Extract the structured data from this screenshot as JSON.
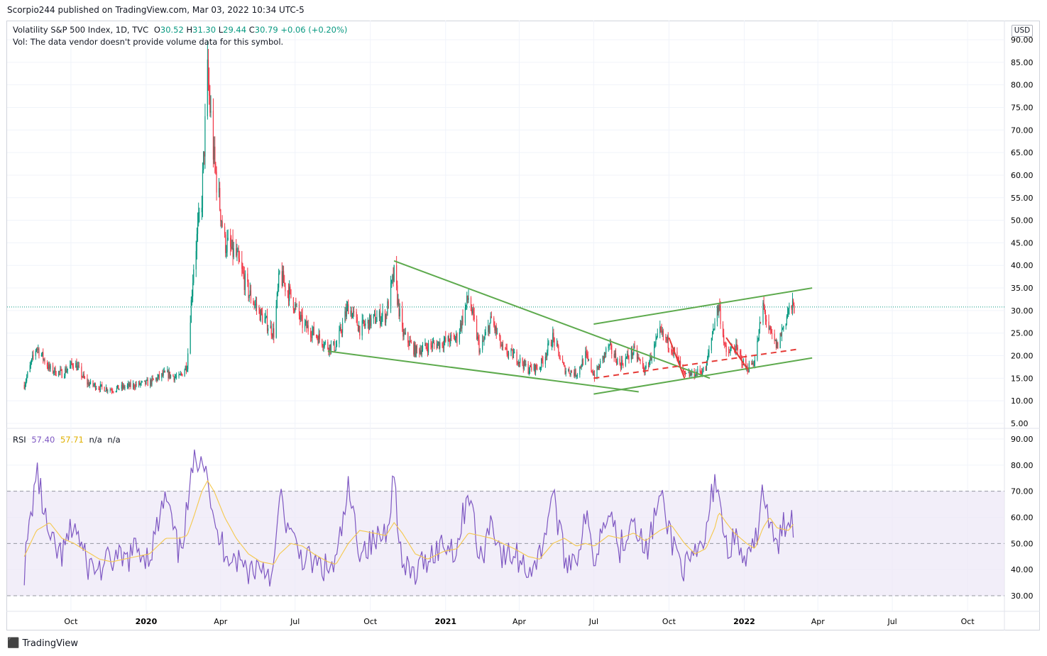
{
  "header": {
    "published": "Scorpio244 published on TradingView.com, Mar 03, 2022 10:34 UTC-5"
  },
  "legend": {
    "symbol": "Volatility S&P 500 Index, 1D, TVC",
    "o_label": "O",
    "o": "30.52",
    "h_label": "H",
    "h": "31.30",
    "l_label": "L",
    "l": "29.44",
    "c_label": "C",
    "c": "30.79",
    "change": "+0.06 (+0.20%)",
    "vol_note": "Vol: The data vendor doesn't provide volume data for this symbol."
  },
  "rsi_legend": {
    "name": "RSI",
    "value": "57.40",
    "ma": "57.71",
    "na1": "n/a",
    "na2": "n/a"
  },
  "currency": "USD",
  "brand": "TradingView",
  "colors": {
    "up": "#089981",
    "down": "#f23645",
    "rsi": "#7e57c2",
    "rsi_ma": "#f5c84c",
    "trend_green": "#5daa4d",
    "trend_red": "#e53935",
    "band": "#ede7f6"
  },
  "chart_data": [
    {
      "type": "candlestick",
      "title": "Volatility S&P 500 Index, 1D, TVC",
      "ylim": [
        5,
        90
      ],
      "y_ticks": [
        "90.00",
        "85.00",
        "80.00",
        "75.00",
        "70.00",
        "65.00",
        "60.00",
        "55.00",
        "50.00",
        "45.00",
        "40.00",
        "35.00",
        "30.00",
        "25.00",
        "20.00",
        "15.00",
        "10.00",
        "5.00"
      ],
      "x_ticks": [
        "Oct",
        "2020",
        "Apr",
        "Jul",
        "Oct",
        "2021",
        "Apr",
        "Jul",
        "Oct",
        "2022",
        "Apr",
        "Jul",
        "Oct"
      ],
      "last_close": 30.79,
      "series_close_points": [
        [
          "2019-08-05",
          13.5
        ],
        [
          "2019-08-20",
          22
        ],
        [
          "2019-09-05",
          17
        ],
        [
          "2019-09-20",
          16
        ],
        [
          "2019-10-05",
          18.5
        ],
        [
          "2019-10-20",
          14
        ],
        [
          "2019-11-05",
          13
        ],
        [
          "2019-11-20",
          12.5
        ],
        [
          "2019-12-05",
          13
        ],
        [
          "2019-12-20",
          13.5
        ],
        [
          "2020-01-05",
          14
        ],
        [
          "2020-01-25",
          16
        ],
        [
          "2020-02-10",
          15
        ],
        [
          "2020-02-20",
          18
        ],
        [
          "2020-02-28",
          40
        ],
        [
          "2020-03-09",
          55
        ],
        [
          "2020-03-16",
          82
        ],
        [
          "2020-03-24",
          63
        ],
        [
          "2020-04-06",
          45
        ],
        [
          "2020-04-20",
          42
        ],
        [
          "2020-05-05",
          34
        ],
        [
          "2020-05-20",
          29
        ],
        [
          "2020-06-05",
          25
        ],
        [
          "2020-06-12",
          38
        ],
        [
          "2020-06-26",
          33
        ],
        [
          "2020-07-10",
          27
        ],
        [
          "2020-07-24",
          25
        ],
        [
          "2020-08-10",
          22
        ],
        [
          "2020-08-20",
          22
        ],
        [
          "2020-09-04",
          31
        ],
        [
          "2020-09-18",
          26
        ],
        [
          "2020-10-05",
          28
        ],
        [
          "2020-10-20",
          29
        ],
        [
          "2020-10-30",
          38
        ],
        [
          "2020-11-09",
          25
        ],
        [
          "2020-11-25",
          21
        ],
        [
          "2020-12-10",
          22
        ],
        [
          "2020-12-30",
          23
        ],
        [
          "2021-01-15",
          24
        ],
        [
          "2021-01-29",
          33
        ],
        [
          "2021-02-12",
          21
        ],
        [
          "2021-02-26",
          28
        ],
        [
          "2021-03-12",
          21
        ],
        [
          "2021-03-26",
          20
        ],
        [
          "2021-04-12",
          17
        ],
        [
          "2021-04-26",
          17.5
        ],
        [
          "2021-05-12",
          24
        ],
        [
          "2021-05-26",
          17
        ],
        [
          "2021-06-10",
          16
        ],
        [
          "2021-06-21",
          20
        ],
        [
          "2021-07-02",
          15.5
        ],
        [
          "2021-07-19",
          22
        ],
        [
          "2021-08-02",
          18
        ],
        [
          "2021-08-19",
          21
        ],
        [
          "2021-09-02",
          16.5
        ],
        [
          "2021-09-20",
          25
        ],
        [
          "2021-10-04",
          22
        ],
        [
          "2021-10-20",
          15.5
        ],
        [
          "2021-11-02",
          16
        ],
        [
          "2021-11-15",
          17
        ],
        [
          "2021-11-26",
          28
        ],
        [
          "2021-12-01",
          31
        ],
        [
          "2021-12-10",
          20
        ],
        [
          "2021-12-20",
          22
        ],
        [
          "2022-01-04",
          17
        ],
        [
          "2022-01-14",
          19
        ],
        [
          "2022-01-24",
          31
        ],
        [
          "2022-02-01",
          25
        ],
        [
          "2022-02-10",
          22
        ],
        [
          "2022-02-24",
          30
        ],
        [
          "2022-03-03",
          30.79
        ]
      ]
    },
    {
      "type": "line",
      "title": "RSI",
      "ylim": [
        25,
        95
      ],
      "y_ticks": [
        "90.00",
        "80.00",
        "70.00",
        "60.00",
        "50.00",
        "40.00",
        "30.00"
      ],
      "bands": [
        70,
        50,
        30
      ],
      "series": [
        {
          "name": "RSI",
          "points": [
            [
              "2019-08-05",
              40
            ],
            [
              "2019-08-20",
              78
            ],
            [
              "2019-09-05",
              50
            ],
            [
              "2019-09-20",
              45
            ],
            [
              "2019-10-05",
              58
            ],
            [
              "2019-10-20",
              42
            ],
            [
              "2019-11-05",
              40
            ],
            [
              "2019-11-20",
              44
            ],
            [
              "2019-12-05",
              43
            ],
            [
              "2019-12-20",
              48
            ],
            [
              "2020-01-05",
              45
            ],
            [
              "2020-01-25",
              68
            ],
            [
              "2020-02-10",
              45
            ],
            [
              "2020-02-20",
              62
            ],
            [
              "2020-02-28",
              80
            ],
            [
              "2020-03-09",
              86
            ],
            [
              "2020-03-16",
              78
            ],
            [
              "2020-03-24",
              55
            ],
            [
              "2020-04-06",
              48
            ],
            [
              "2020-04-20",
              44
            ],
            [
              "2020-05-05",
              40
            ],
            [
              "2020-05-20",
              42
            ],
            [
              "2020-06-05",
              38
            ],
            [
              "2020-06-12",
              68
            ],
            [
              "2020-06-26",
              52
            ],
            [
              "2020-07-10",
              45
            ],
            [
              "2020-07-24",
              42
            ],
            [
              "2020-08-10",
              40
            ],
            [
              "2020-08-20",
              42
            ],
            [
              "2020-09-04",
              70
            ],
            [
              "2020-09-18",
              48
            ],
            [
              "2020-10-05",
              50
            ],
            [
              "2020-10-20",
              55
            ],
            [
              "2020-10-30",
              76
            ],
            [
              "2020-11-09",
              40
            ],
            [
              "2020-11-25",
              38
            ],
            [
              "2020-12-10",
              45
            ],
            [
              "2020-12-30",
              50
            ],
            [
              "2021-01-15",
              48
            ],
            [
              "2021-01-29",
              72
            ],
            [
              "2021-02-12",
              42
            ],
            [
              "2021-02-26",
              60
            ],
            [
              "2021-03-12",
              44
            ],
            [
              "2021-03-26",
              46
            ],
            [
              "2021-04-12",
              40
            ],
            [
              "2021-04-26",
              45
            ],
            [
              "2021-05-12",
              70
            ],
            [
              "2021-05-26",
              44
            ],
            [
              "2021-06-10",
              45
            ],
            [
              "2021-06-21",
              60
            ],
            [
              "2021-07-02",
              44
            ],
            [
              "2021-07-19",
              66
            ],
            [
              "2021-08-02",
              48
            ],
            [
              "2021-08-19",
              62
            ],
            [
              "2021-09-02",
              45
            ],
            [
              "2021-09-20",
              68
            ],
            [
              "2021-10-04",
              52
            ],
            [
              "2021-10-20",
              40
            ],
            [
              "2021-11-02",
              44
            ],
            [
              "2021-11-15",
              52
            ],
            [
              "2021-11-26",
              76
            ],
            [
              "2021-12-01",
              70
            ],
            [
              "2021-12-10",
              48
            ],
            [
              "2021-12-20",
              52
            ],
            [
              "2022-01-04",
              42
            ],
            [
              "2022-01-14",
              48
            ],
            [
              "2022-01-24",
              72
            ],
            [
              "2022-02-01",
              56
            ],
            [
              "2022-02-10",
              48
            ],
            [
              "2022-02-24",
              62
            ],
            [
              "2022-03-03",
              57.4
            ]
          ]
        },
        {
          "name": "MA",
          "points": [
            [
              "2019-08-05",
              45
            ],
            [
              "2019-08-20",
              55
            ],
            [
              "2019-09-05",
              58
            ],
            [
              "2019-09-20",
              52
            ],
            [
              "2019-10-05",
              50
            ],
            [
              "2019-10-20",
              47
            ],
            [
              "2019-11-05",
              44
            ],
            [
              "2019-11-20",
              43
            ],
            [
              "2019-12-05",
              44
            ],
            [
              "2019-12-20",
              45
            ],
            [
              "2020-01-05",
              46
            ],
            [
              "2020-01-25",
              52
            ],
            [
              "2020-02-10",
              52
            ],
            [
              "2020-02-20",
              53
            ],
            [
              "2020-02-28",
              60
            ],
            [
              "2020-03-09",
              70
            ],
            [
              "2020-03-16",
              74
            ],
            [
              "2020-03-24",
              70
            ],
            [
              "2020-04-06",
              60
            ],
            [
              "2020-04-20",
              52
            ],
            [
              "2020-05-05",
              46
            ],
            [
              "2020-05-20",
              43
            ],
            [
              "2020-06-05",
              42
            ],
            [
              "2020-06-12",
              46
            ],
            [
              "2020-06-26",
              50
            ],
            [
              "2020-07-10",
              49
            ],
            [
              "2020-07-24",
              46
            ],
            [
              "2020-08-10",
              43
            ],
            [
              "2020-08-20",
              42
            ],
            [
              "2020-09-04",
              50
            ],
            [
              "2020-09-18",
              55
            ],
            [
              "2020-10-05",
              54
            ],
            [
              "2020-10-20",
              53
            ],
            [
              "2020-10-30",
              58
            ],
            [
              "2020-11-09",
              54
            ],
            [
              "2020-11-25",
              46
            ],
            [
              "2020-12-10",
              44
            ],
            [
              "2020-12-30",
              47
            ],
            [
              "2021-01-15",
              48
            ],
            [
              "2021-01-29",
              54
            ],
            [
              "2021-02-12",
              53
            ],
            [
              "2021-02-26",
              52
            ],
            [
              "2021-03-12",
              50
            ],
            [
              "2021-03-26",
              48
            ],
            [
              "2021-04-12",
              45
            ],
            [
              "2021-04-26",
              44
            ],
            [
              "2021-05-12",
              50
            ],
            [
              "2021-05-26",
              52
            ],
            [
              "2021-06-10",
              49
            ],
            [
              "2021-06-21",
              50
            ],
            [
              "2021-07-02",
              49
            ],
            [
              "2021-07-19",
              53
            ],
            [
              "2021-08-02",
              52
            ],
            [
              "2021-08-19",
              54
            ],
            [
              "2021-09-02",
              51
            ],
            [
              "2021-09-20",
              55
            ],
            [
              "2021-10-04",
              57
            ],
            [
              "2021-10-20",
              50
            ],
            [
              "2021-11-02",
              46
            ],
            [
              "2021-11-15",
              48
            ],
            [
              "2021-11-26",
              56
            ],
            [
              "2021-12-01",
              62
            ],
            [
              "2021-12-10",
              58
            ],
            [
              "2021-12-20",
              54
            ],
            [
              "2022-01-04",
              50
            ],
            [
              "2022-01-14",
              48
            ],
            [
              "2022-01-24",
              56
            ],
            [
              "2022-02-01",
              60
            ],
            [
              "2022-02-10",
              56
            ],
            [
              "2022-02-24",
              55
            ],
            [
              "2022-03-03",
              57.71
            ]
          ]
        }
      ]
    }
  ]
}
